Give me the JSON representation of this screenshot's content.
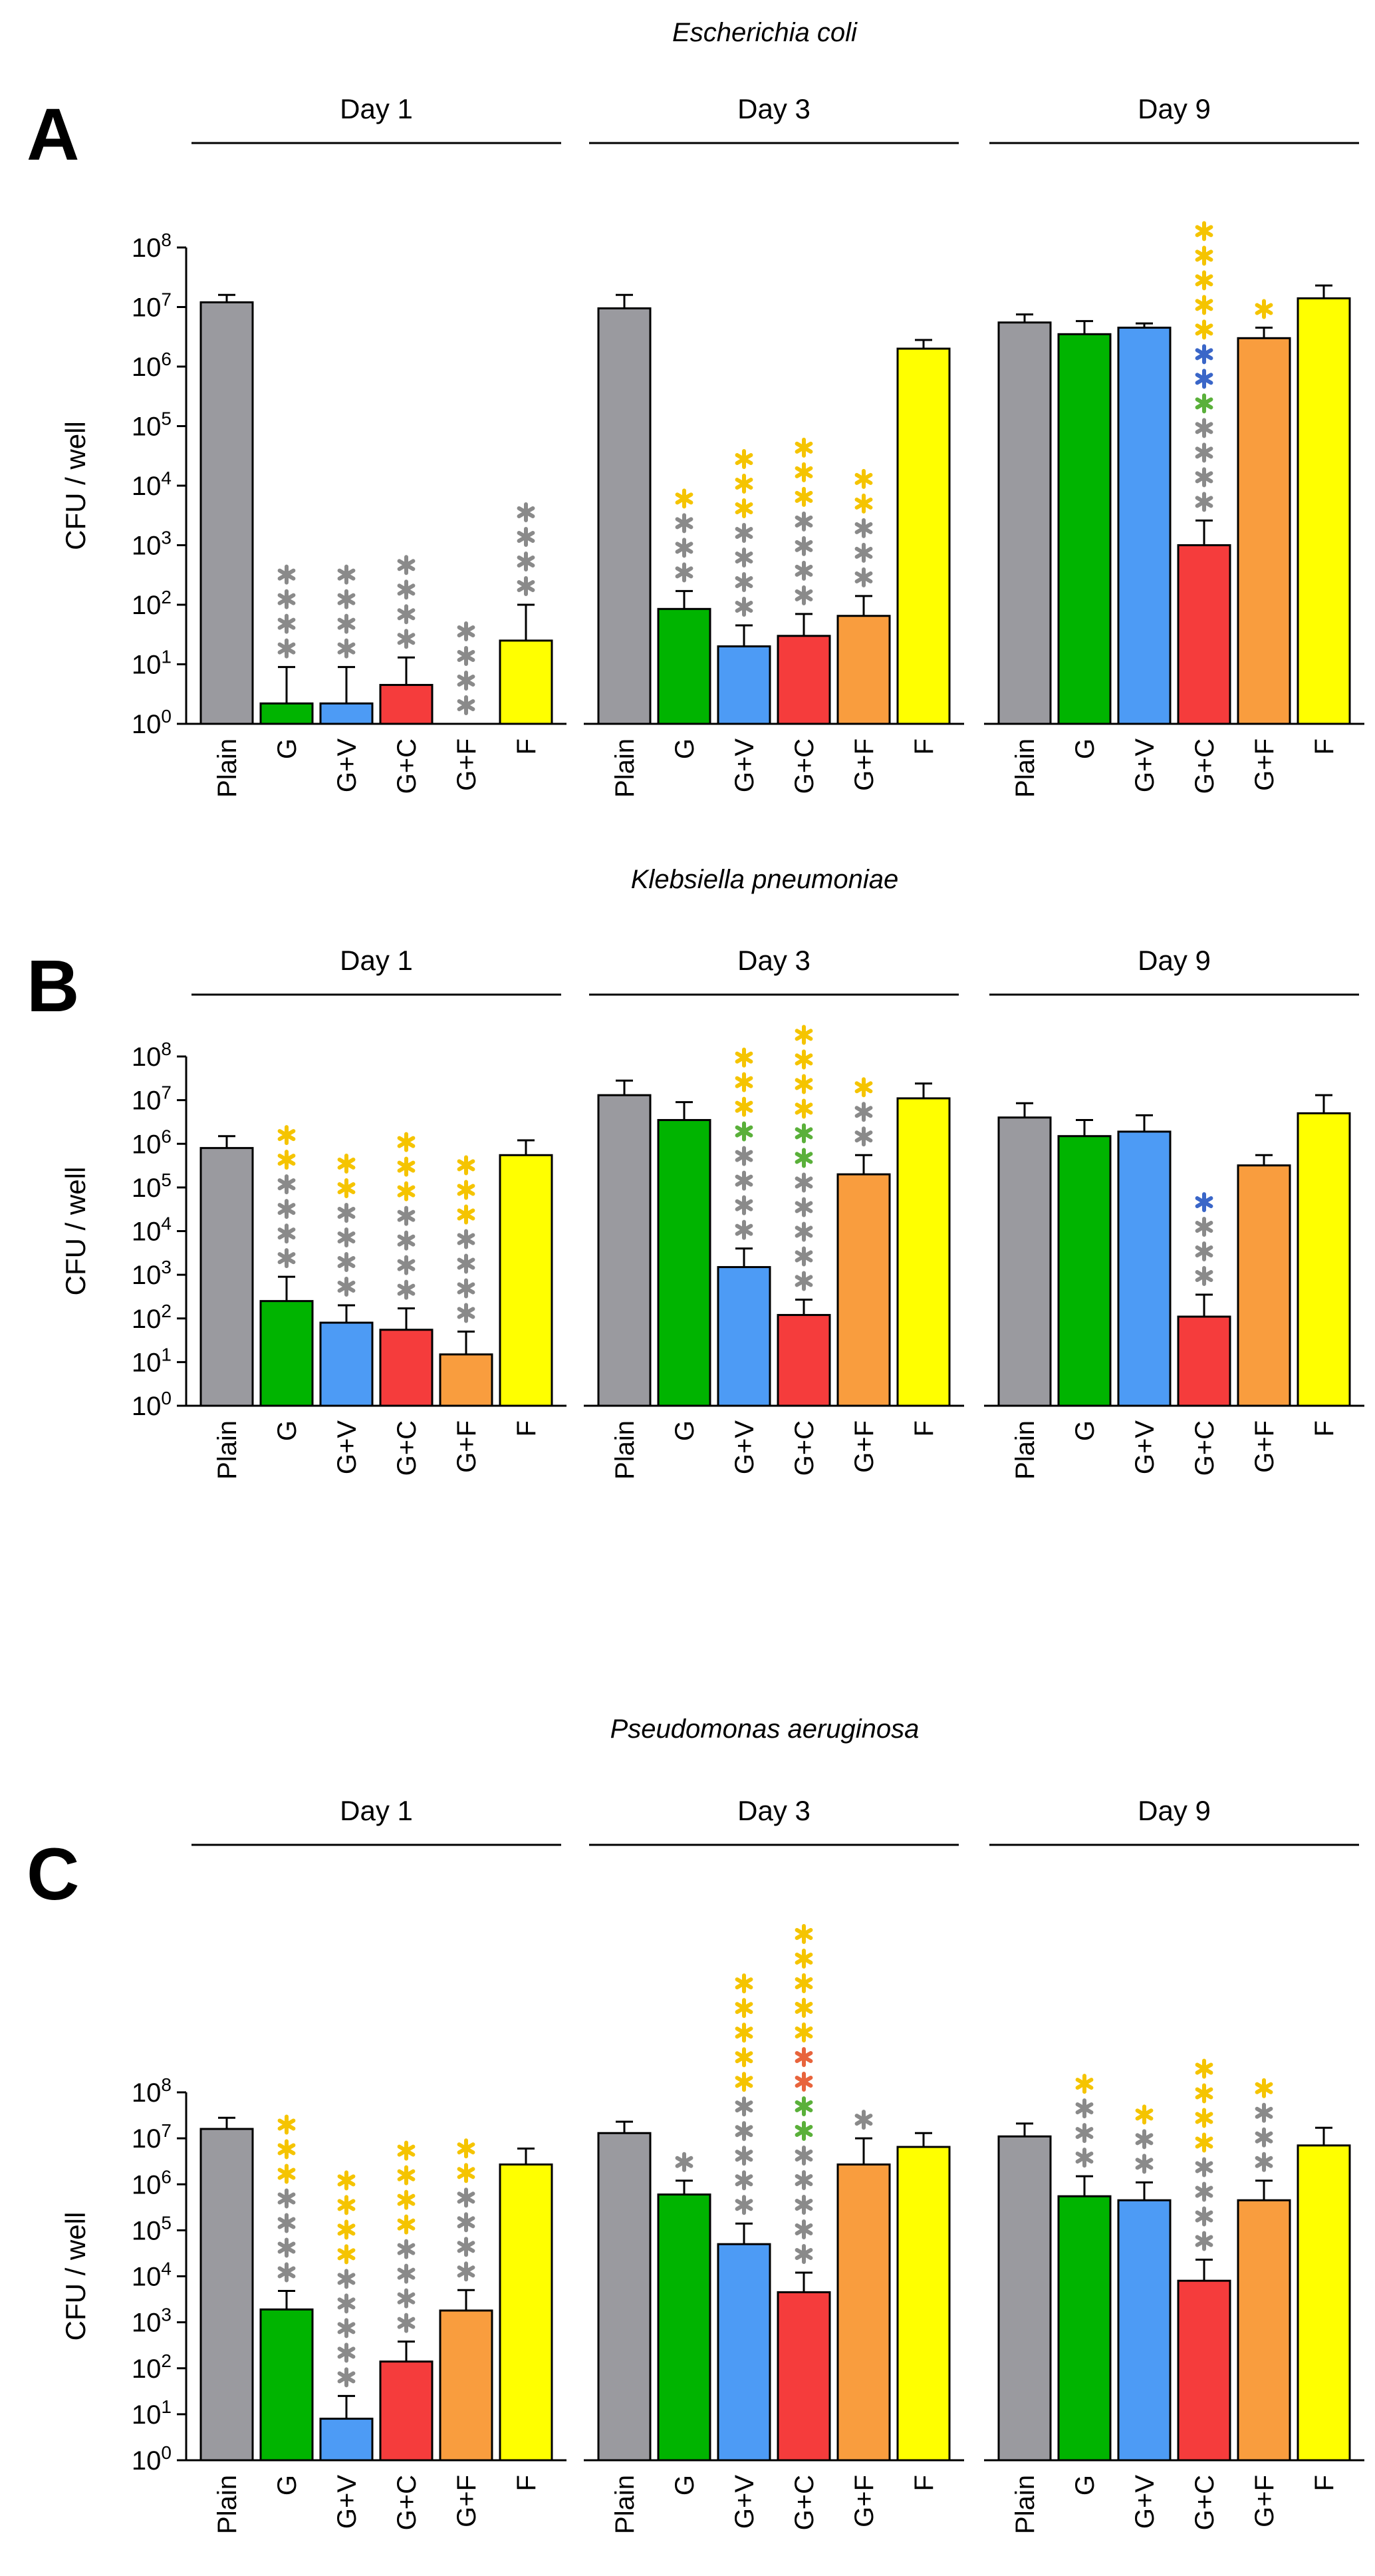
{
  "chart_data": [
    {
      "type": "bar",
      "panel_label": "A",
      "title": "Escherichia coli",
      "ylabel": "CFU / well",
      "yscale": "log10",
      "ylim": [
        1,
        100000000
      ],
      "yticks": [
        "10^0",
        "10^1",
        "10^2",
        "10^3",
        "10^4",
        "10^5",
        "10^6",
        "10^7",
        "10^8"
      ],
      "categories": [
        "Plain",
        "G",
        "G+V",
        "G+C",
        "G+F",
        "F"
      ],
      "groups": [
        {
          "name": "Day 1",
          "values": [
            12000000,
            2.2,
            2.2,
            4.5,
            1,
            25
          ],
          "error_upper": [
            16000000,
            9,
            9,
            13,
            null,
            100
          ],
          "stars": [
            [],
            [
              [
                "gray",
                4
              ]
            ],
            [
              [
                "gray",
                4
              ]
            ],
            [
              [
                "gray",
                4
              ]
            ],
            [
              [
                "gray",
                4
              ]
            ],
            [
              [
                "gray",
                4
              ]
            ]
          ]
        },
        {
          "name": "Day 3",
          "values": [
            9500000,
            85,
            20,
            30,
            65,
            2000000
          ],
          "error_upper": [
            16000000,
            170,
            45,
            70,
            140,
            2800000
          ],
          "stars": [
            [],
            [
              [
                "gray",
                3
              ],
              [
                "orange",
                1
              ]
            ],
            [
              [
                "gray",
                4
              ],
              [
                "orange",
                3
              ]
            ],
            [
              [
                "gray",
                4
              ],
              [
                "orange",
                3
              ]
            ],
            [
              [
                "gray",
                3
              ],
              [
                "orange",
                2
              ]
            ],
            []
          ]
        },
        {
          "name": "Day 9",
          "values": [
            5500000,
            3500000,
            4500000,
            1000,
            3000000,
            14000000
          ],
          "error_upper": [
            7500000,
            5800000,
            5300000,
            2600,
            4500000,
            23000000
          ],
          "stars": [
            [],
            [],
            [],
            [
              [
                "gray",
                4
              ],
              [
                "green",
                1
              ],
              [
                "blue",
                2
              ],
              [
                "orange",
                5
              ]
            ],
            [
              [
                "orange",
                1
              ]
            ],
            []
          ]
        }
      ]
    },
    {
      "type": "bar",
      "panel_label": "B",
      "title": "Klebsiella pneumoniae",
      "ylabel": "CFU / well",
      "yscale": "log10",
      "ylim": [
        1,
        100000000
      ],
      "yticks": [
        "10^0",
        "10^1",
        "10^2",
        "10^3",
        "10^4",
        "10^5",
        "10^6",
        "10^7",
        "10^8"
      ],
      "categories": [
        "Plain",
        "G",
        "G+V",
        "G+C",
        "G+F",
        "F"
      ],
      "groups": [
        {
          "name": "Day 1",
          "values": [
            800000,
            250,
            80,
            55,
            15,
            550000
          ],
          "error_upper": [
            1500000,
            900,
            200,
            170,
            50,
            1200000
          ],
          "stars": [
            [],
            [
              [
                "gray",
                4
              ],
              [
                "orange",
                2
              ]
            ],
            [
              [
                "gray",
                4
              ],
              [
                "orange",
                2
              ]
            ],
            [
              [
                "gray",
                4
              ],
              [
                "orange",
                3
              ]
            ],
            [
              [
                "gray",
                4
              ],
              [
                "orange",
                3
              ]
            ],
            []
          ]
        },
        {
          "name": "Day 3",
          "values": [
            13000000,
            3500000,
            1500,
            120,
            200000,
            11000000
          ],
          "error_upper": [
            28000000,
            9000000,
            4000,
            270,
            550000,
            24000000
          ],
          "stars": [
            [],
            [],
            [
              [
                "gray",
                4
              ],
              [
                "green",
                1
              ],
              [
                "orange",
                3
              ]
            ],
            [
              [
                "gray",
                5
              ],
              [
                "green",
                2
              ],
              [
                "orange",
                4
              ]
            ],
            [
              [
                "gray",
                2
              ],
              [
                "orange",
                1
              ]
            ],
            []
          ]
        },
        {
          "name": "Day 9",
          "values": [
            4000000,
            1500000,
            1900000,
            110,
            320000,
            5000000
          ],
          "error_upper": [
            8500000,
            3500000,
            4500000,
            350,
            550000,
            13000000
          ],
          "stars": [
            [],
            [],
            [],
            [
              [
                "gray",
                3
              ],
              [
                "blue",
                1
              ]
            ],
            [],
            []
          ]
        }
      ]
    },
    {
      "type": "bar",
      "panel_label": "C",
      "title": "Pseudomonas aeruginosa",
      "ylabel": "CFU / well",
      "yscale": "log10",
      "ylim": [
        1,
        100000000
      ],
      "yticks": [
        "10^0",
        "10^1",
        "10^2",
        "10^3",
        "10^4",
        "10^5",
        "10^6",
        "10^7",
        "10^8"
      ],
      "categories": [
        "Plain",
        "G",
        "G+V",
        "G+C",
        "G+F",
        "F"
      ],
      "groups": [
        {
          "name": "Day 1",
          "values": [
            16000000,
            1900,
            8,
            140,
            1800,
            2700000
          ],
          "error_upper": [
            28000000,
            4800,
            25,
            380,
            5000,
            6000000
          ],
          "stars": [
            [],
            [
              [
                "gray",
                4
              ],
              [
                "orange",
                3
              ]
            ],
            [
              [
                "gray",
                5
              ],
              [
                "orange",
                4
              ]
            ],
            [
              [
                "gray",
                4
              ],
              [
                "orange",
                4
              ]
            ],
            [
              [
                "gray",
                4
              ],
              [
                "orange",
                2
              ]
            ],
            []
          ]
        },
        {
          "name": "Day 3",
          "values": [
            13000000,
            600000,
            50000,
            4500,
            2700000,
            6500000
          ],
          "error_upper": [
            23000000,
            1200000,
            140000,
            12000,
            10000000,
            13000000
          ],
          "stars": [
            [],
            [
              [
                "gray",
                1
              ]
            ],
            [
              [
                "gray",
                5
              ],
              [
                "orange",
                5
              ]
            ],
            [
              [
                "gray",
                5
              ],
              [
                "green",
                2
              ],
              [
                "red",
                2
              ],
              [
                "orange",
                5
              ]
            ],
            [
              [
                "gray",
                1
              ]
            ],
            []
          ]
        },
        {
          "name": "Day 9",
          "values": [
            11000000,
            550000,
            450000,
            8000,
            450000,
            7000000
          ],
          "error_upper": [
            21000000,
            1500000,
            1100000,
            23000,
            1200000,
            17000000
          ],
          "stars": [
            [],
            [
              [
                "gray",
                3
              ],
              [
                "orange",
                1
              ]
            ],
            [
              [
                "gray",
                2
              ],
              [
                "orange",
                1
              ]
            ],
            [
              [
                "gray",
                4
              ],
              [
                "orange",
                4
              ]
            ],
            [
              [
                "gray",
                3
              ],
              [
                "orange",
                1
              ]
            ],
            []
          ]
        }
      ]
    }
  ],
  "colors": {
    "Plain": "#9a9a9f",
    "G": "#00b400",
    "G+V": "#4d9bf5",
    "G+C": "#f53c3c",
    "G+F": "#f99d3e",
    "F": "#ffff00"
  },
  "star_colors": {
    "gray": "#8a8a8a",
    "orange": "#f5c400",
    "green": "#5ab03a",
    "blue": "#3a66c8",
    "red": "#e8643c"
  }
}
